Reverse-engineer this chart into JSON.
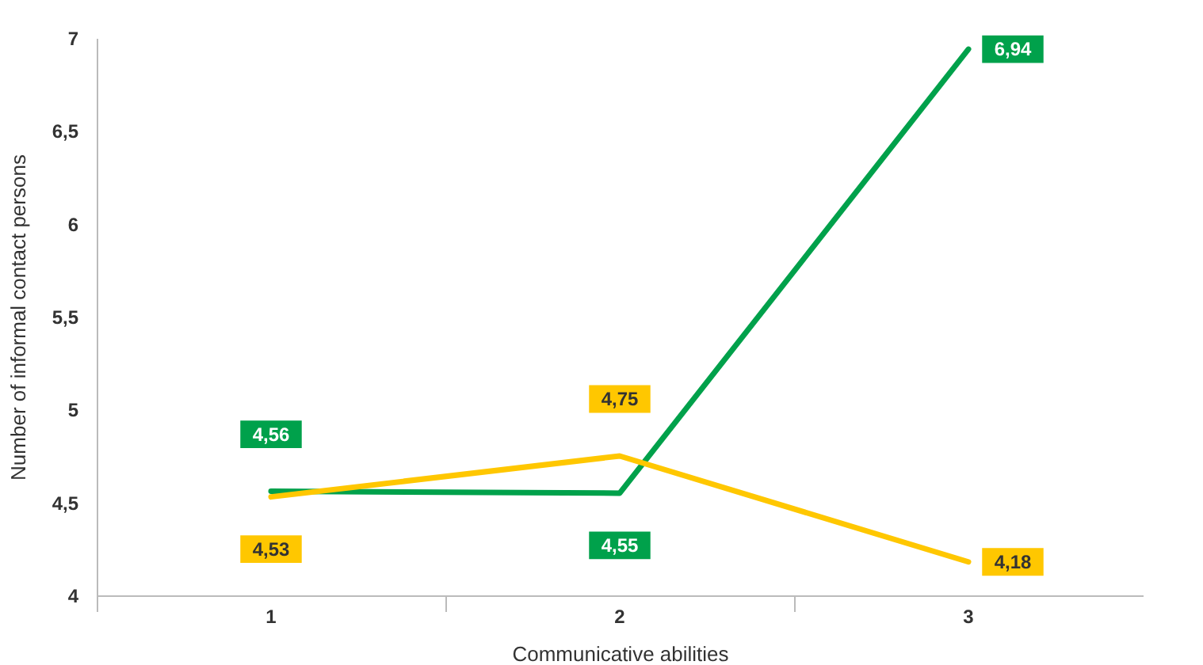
{
  "chart_data": {
    "type": "line",
    "xlabel": "Communicative abilities",
    "ylabel": "Number of informal contact persons",
    "categories": [
      "1",
      "2",
      "3"
    ],
    "series": [
      {
        "color": "#00a14b",
        "values": [
          4.56,
          4.55,
          6.94
        ],
        "value_labels": [
          "4,56",
          "4,55",
          "6,94"
        ]
      },
      {
        "color": "#ffc700",
        "values": [
          4.53,
          4.75,
          4.18
        ],
        "value_labels": [
          "4,53",
          "4,75",
          "4,18"
        ]
      }
    ],
    "ylim": [
      4,
      7
    ],
    "yticks": [
      {
        "value": 4,
        "label": "4"
      },
      {
        "value": 4.5,
        "label": "4,5"
      },
      {
        "value": 5,
        "label": "5"
      },
      {
        "value": 5.5,
        "label": "5,5"
      },
      {
        "value": 6,
        "label": "6"
      },
      {
        "value": 6.5,
        "label": "6,5"
      },
      {
        "value": 7,
        "label": "7"
      }
    ],
    "grid": false,
    "legend": false,
    "marker": "none",
    "line_style": "solid"
  }
}
